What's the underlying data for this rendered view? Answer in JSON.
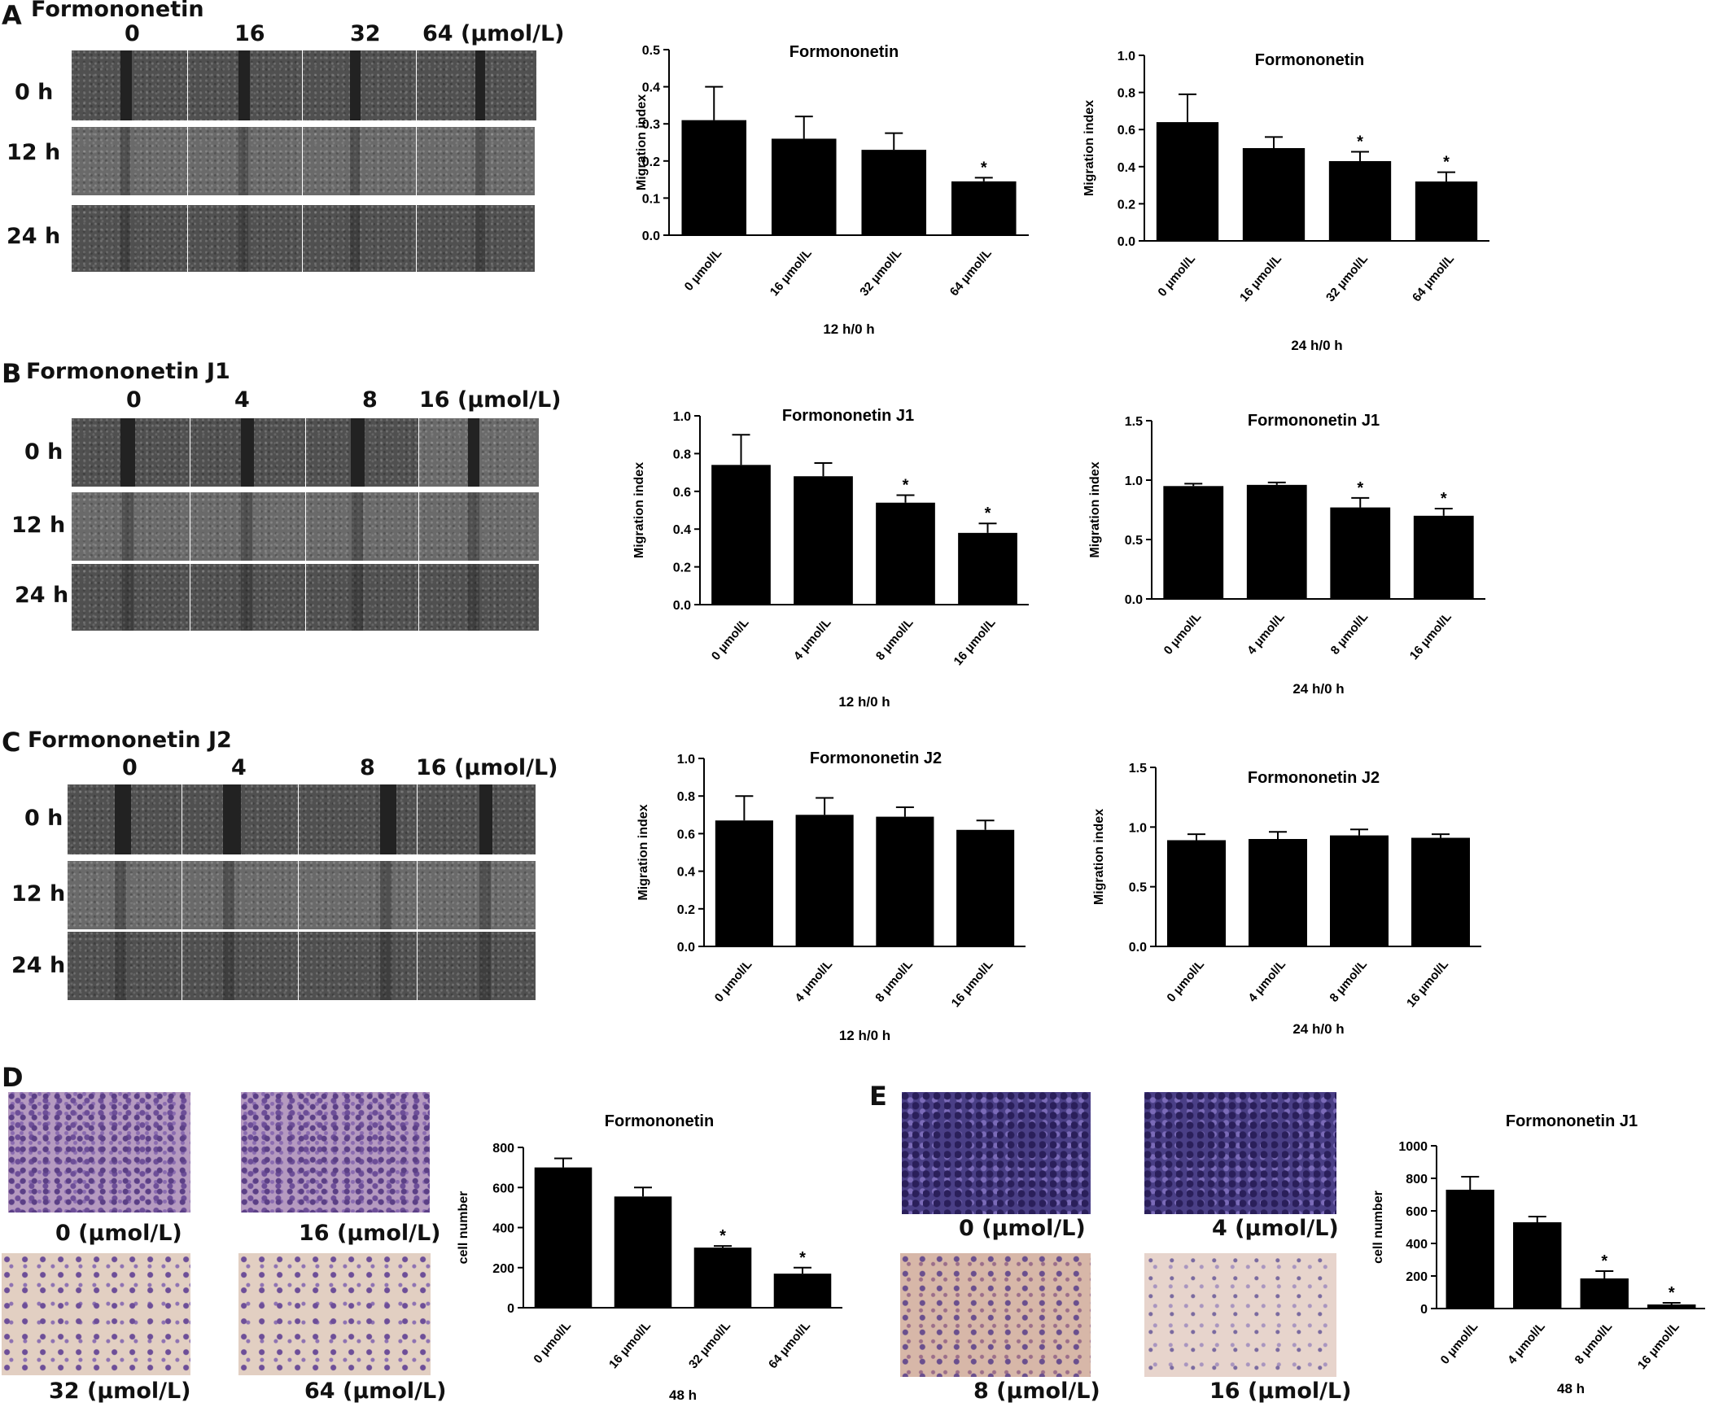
{
  "panels": {
    "A": {
      "letter": "A",
      "title": "Formononetin",
      "col_labels": [
        "0",
        "16",
        "32",
        "64 (μmol/L)"
      ],
      "row_labels": [
        "0 h",
        "12 h",
        "24 h"
      ]
    },
    "B": {
      "letter": "B",
      "title": "Formononetin J1",
      "col_labels": [
        "0",
        "4",
        "8",
        "16 (μmol/L)"
      ],
      "row_labels": [
        "0 h",
        "12 h",
        "24 h"
      ]
    },
    "C": {
      "letter": "C",
      "title": "Formononetin J2",
      "col_labels": [
        "0",
        "4",
        "8",
        "16 (μmol/L)"
      ],
      "row_labels": [
        "0 h",
        "12 h",
        "24 h"
      ]
    },
    "D": {
      "letter": "D",
      "captions": [
        "0 (μmol/L)",
        "16 (μmol/L)",
        "32 (μmol/L)",
        "64 (μmol/L)"
      ]
    },
    "E": {
      "letter": "E",
      "captions": [
        "0 (μmol/L)",
        "4 (μmol/L)",
        "8 (μmol/L)",
        "16 (μmol/L)"
      ]
    }
  },
  "chart_data": [
    {
      "type": "bar",
      "title": "Formononetin",
      "ylabel": "Migration index",
      "xlabel": "12 h/0 h",
      "ylim": [
        0,
        0.5
      ],
      "yticks": [
        "0.0",
        "0.1",
        "0.2",
        "0.3",
        "0.4",
        "0.5"
      ],
      "categories": [
        "0 μmol/L",
        "16 μmol/L",
        "32 μmol/L",
        "64 μmol/L"
      ],
      "values": [
        0.31,
        0.26,
        0.23,
        0.145
      ],
      "errors": [
        0.09,
        0.06,
        0.045,
        0.01
      ],
      "significant": [
        "",
        "",
        "",
        "*"
      ]
    },
    {
      "type": "bar",
      "title": "Formononetin",
      "ylabel": "Migration index",
      "xlabel": "24 h/0 h",
      "ylim": [
        0,
        1.0
      ],
      "yticks": [
        "0.0",
        "0.2",
        "0.4",
        "0.6",
        "0.8",
        "1.0"
      ],
      "categories": [
        "0 μmol/L",
        "16 μmol/L",
        "32 μmol/L",
        "64 μmol/L"
      ],
      "values": [
        0.64,
        0.5,
        0.43,
        0.32
      ],
      "errors": [
        0.15,
        0.06,
        0.05,
        0.05
      ],
      "significant": [
        "",
        "",
        "*",
        "*"
      ]
    },
    {
      "type": "bar",
      "title": "Formononetin J1",
      "ylabel": "Migration index",
      "xlabel": "12 h/0 h",
      "ylim": [
        0,
        1.0
      ],
      "yticks": [
        "0.0",
        "0.2",
        "0.4",
        "0.6",
        "0.8",
        "1.0"
      ],
      "categories": [
        "0 μmol/L",
        "4 μmol/L",
        "8 μmol/L",
        "16 μmol/L"
      ],
      "values": [
        0.74,
        0.68,
        0.54,
        0.38
      ],
      "errors": [
        0.16,
        0.07,
        0.04,
        0.05
      ],
      "significant": [
        "",
        "",
        "*",
        "*"
      ]
    },
    {
      "type": "bar",
      "title": "Formononetin J1",
      "ylabel": "Migration index",
      "xlabel": "24 h/0 h",
      "ylim": [
        0,
        1.5
      ],
      "yticks": [
        "0.0",
        "0.5",
        "1.0",
        "1.5"
      ],
      "categories": [
        "0 μmol/L",
        "4 μmol/L",
        "8 μmol/L",
        "16 μmol/L"
      ],
      "values": [
        0.95,
        0.96,
        0.77,
        0.7
      ],
      "errors": [
        0.02,
        0.02,
        0.08,
        0.06
      ],
      "significant": [
        "",
        "",
        "*",
        "*"
      ]
    },
    {
      "type": "bar",
      "title": "Formononetin J2",
      "ylabel": "Migration index",
      "xlabel": "12 h/0 h",
      "ylim": [
        0,
        1.0
      ],
      "yticks": [
        "0.0",
        "0.2",
        "0.4",
        "0.6",
        "0.8",
        "1.0"
      ],
      "categories": [
        "0 μmol/L",
        "4 μmol/L",
        "8 μmol/L",
        "16 μmol/L"
      ],
      "values": [
        0.67,
        0.7,
        0.69,
        0.62
      ],
      "errors": [
        0.13,
        0.09,
        0.05,
        0.05
      ],
      "significant": [
        "",
        "",
        "",
        ""
      ]
    },
    {
      "type": "bar",
      "title": "Formononetin J2",
      "ylabel": "Migration index",
      "xlabel": "24 h/0 h",
      "ylim": [
        0,
        1.5
      ],
      "yticks": [
        "0.0",
        "0.5",
        "1.0",
        "1.5"
      ],
      "categories": [
        "0 μmol/L",
        "4 μmol/L",
        "8 μmol/L",
        "16 μmol/L"
      ],
      "values": [
        0.89,
        0.9,
        0.93,
        0.91
      ],
      "errors": [
        0.05,
        0.06,
        0.05,
        0.03
      ],
      "significant": [
        "",
        "",
        "",
        ""
      ]
    },
    {
      "type": "bar",
      "title": "Formononetin",
      "ylabel": "cell number",
      "xlabel": "48 h",
      "ylim": [
        0,
        800
      ],
      "yticks": [
        "0",
        "200",
        "400",
        "600",
        "800"
      ],
      "categories": [
        "0 μmol/L",
        "16 μmol/L",
        "32 μmol/L",
        "64 μmol/L"
      ],
      "values": [
        700,
        555,
        300,
        170
      ],
      "errors": [
        45,
        45,
        8,
        30
      ],
      "significant": [
        "",
        "",
        "*",
        "*"
      ]
    },
    {
      "type": "bar",
      "title": "Formononetin J1",
      "ylabel": "cell number",
      "xlabel": "48 h",
      "ylim": [
        0,
        1000
      ],
      "yticks": [
        "0",
        "200",
        "400",
        "600",
        "800",
        "1000"
      ],
      "categories": [
        "0 μmol/L",
        "4 μmol/L",
        "8 μmol/L",
        "16 μmol/L"
      ],
      "values": [
        730,
        530,
        185,
        25
      ],
      "errors": [
        80,
        35,
        45,
        10
      ],
      "significant": [
        "",
        "",
        "*",
        "*"
      ]
    }
  ]
}
